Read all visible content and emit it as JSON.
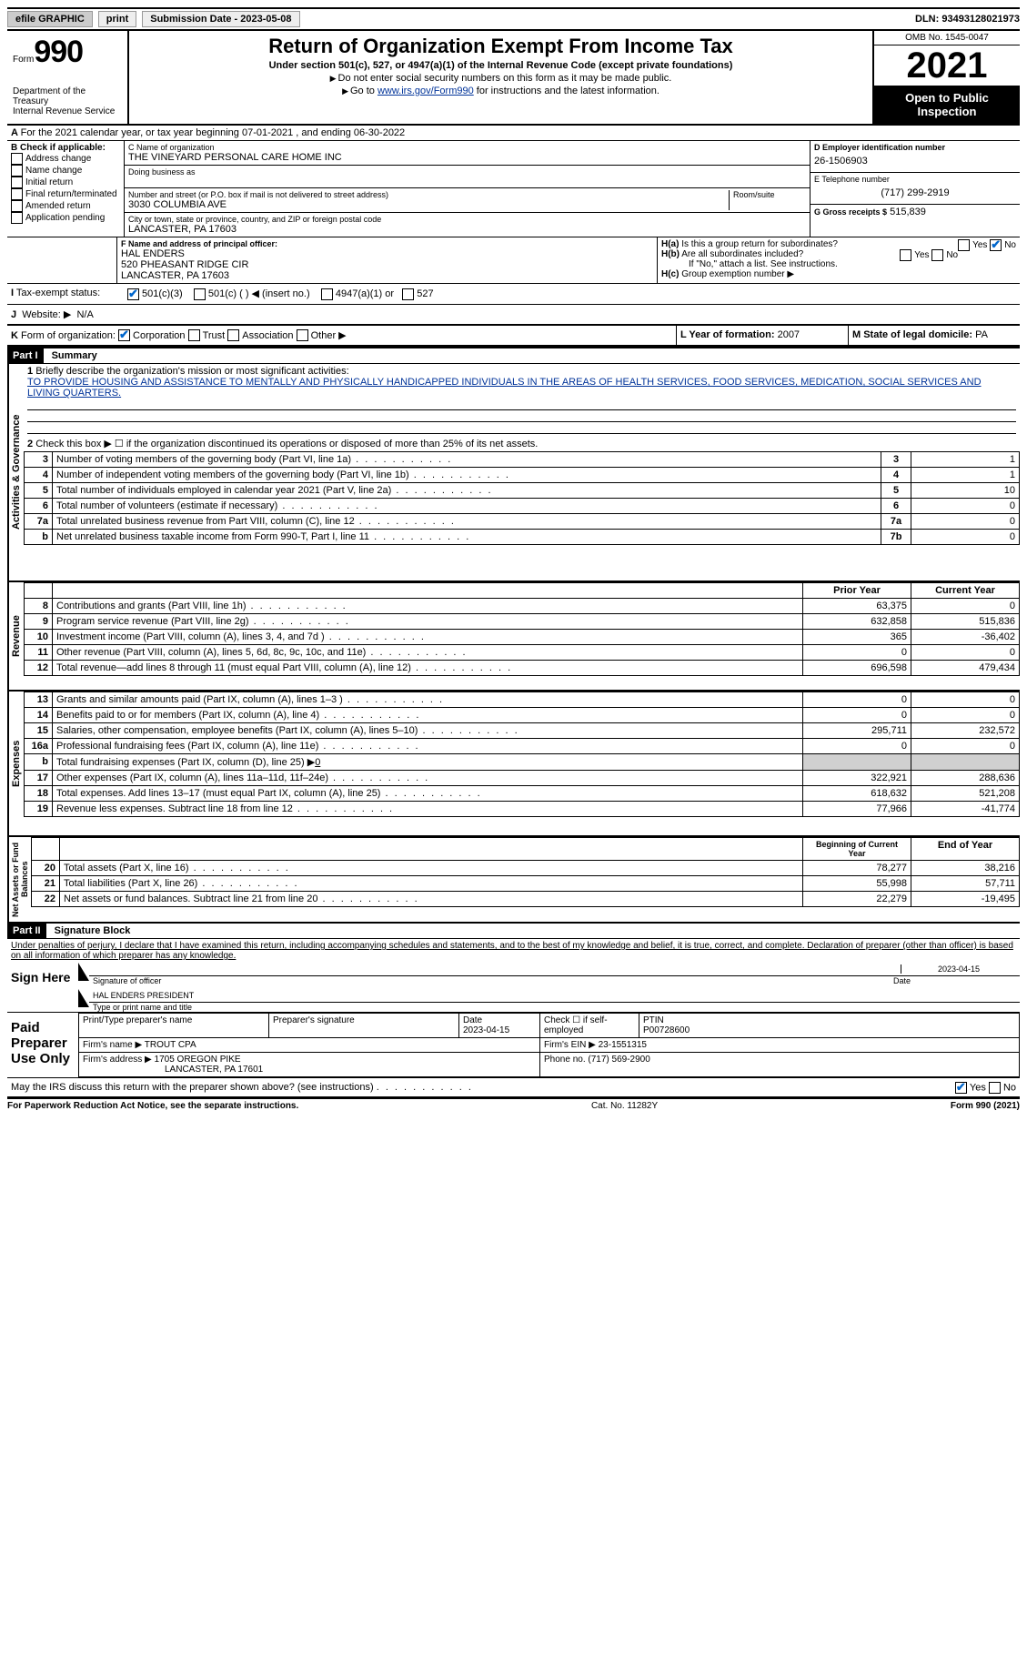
{
  "topbar": {
    "efile": "efile GRAPHIC",
    "print": "print",
    "subdate_label": "Submission Date - 2023-05-08",
    "dln": "DLN: 93493128021973"
  },
  "header": {
    "form_label": "Form",
    "form_no": "990",
    "dept": "Department of the Treasury",
    "irs": "Internal Revenue Service",
    "title": "Return of Organization Exempt From Income Tax",
    "sub": "Under section 501(c), 527, or 4947(a)(1) of the Internal Revenue Code (except private foundations)",
    "note1": "Do not enter social security numbers on this form as it may be made public.",
    "note2_pre": "Go to ",
    "note2_link": "www.irs.gov/Form990",
    "note2_post": " for instructions and the latest information.",
    "omb": "OMB No. 1545-0047",
    "year": "2021",
    "open": "Open to Public Inspection"
  },
  "line_a": "For the 2021 calendar year, or tax year beginning 07-01-2021   , and ending 06-30-2022",
  "section_b": {
    "label": "B Check if applicable:",
    "items": [
      "Address change",
      "Name change",
      "Initial return",
      "Final return/terminated",
      "Amended return",
      "Application pending"
    ]
  },
  "section_c": {
    "name_label": "C Name of organization",
    "name": "THE VINEYARD PERSONAL CARE HOME INC",
    "dba_label": "Doing business as",
    "addr_label": "Number and street (or P.O. box if mail is not delivered to street address)",
    "room_label": "Room/suite",
    "addr": "3030 COLUMBIA AVE",
    "city_label": "City or town, state or province, country, and ZIP or foreign postal code",
    "city": "LANCASTER, PA  17603"
  },
  "section_d": {
    "label": "D Employer identification number",
    "val": "26-1506903"
  },
  "section_e": {
    "label": "E Telephone number",
    "val": "(717) 299-2919"
  },
  "section_g": {
    "label": "G Gross receipts $",
    "val": "515,839"
  },
  "section_f": {
    "label": "F Name and address of principal officer:",
    "name": "HAL ENDERS",
    "addr1": "520 PHEASANT RIDGE CIR",
    "addr2": "LANCASTER, PA  17603"
  },
  "section_h": {
    "ha": "Is this a group return for subordinates?",
    "hb": "Are all subordinates included?",
    "hb_note": "If \"No,\" attach a list. See instructions.",
    "hc": "Group exemption number"
  },
  "section_i": {
    "label": "Tax-exempt status:",
    "opts": [
      "501(c)(3)",
      "501(c) (  ) ◀ (insert no.)",
      "4947(a)(1) or",
      "527"
    ]
  },
  "section_j": {
    "label": "Website:",
    "val": "N/A"
  },
  "section_k": {
    "label": "Form of organization:",
    "opts": [
      "Corporation",
      "Trust",
      "Association",
      "Other"
    ]
  },
  "section_l": {
    "label": "L Year of formation:",
    "val": "2007"
  },
  "section_m": {
    "label": "M State of legal domicile:",
    "val": "PA"
  },
  "part1": {
    "hdr": "Part I",
    "title": "Summary",
    "line1_label": "Briefly describe the organization's mission or most significant activities:",
    "mission": "TO PROVIDE HOUSING AND ASSISTANCE TO MENTALLY AND PHYSICALLY HANDICAPPED INDIVIDUALS IN THE AREAS OF HEALTH SERVICES, FOOD SERVICES, MEDICATION, SOCIAL SERVICES AND LIVING QUARTERS.",
    "line2": "Check this box ▶ ☐ if the organization discontinued its operations or disposed of more than 25% of its net assets.",
    "vtabs": [
      "Activities & Governance",
      "Revenue",
      "Expenses",
      "Net Assets or Fund Balances"
    ],
    "gov_rows": [
      {
        "n": "3",
        "t": "Number of voting members of the governing body (Part VI, line 1a)",
        "box": "3",
        "v": "1"
      },
      {
        "n": "4",
        "t": "Number of independent voting members of the governing body (Part VI, line 1b)",
        "box": "4",
        "v": "1"
      },
      {
        "n": "5",
        "t": "Total number of individuals employed in calendar year 2021 (Part V, line 2a)",
        "box": "5",
        "v": "10"
      },
      {
        "n": "6",
        "t": "Total number of volunteers (estimate if necessary)",
        "box": "6",
        "v": "0"
      },
      {
        "n": "7a",
        "t": "Total unrelated business revenue from Part VIII, column (C), line 12",
        "box": "7a",
        "v": "0"
      },
      {
        "n": "b",
        "t": "Net unrelated business taxable income from Form 990-T, Part I, line 11",
        "box": "7b",
        "v": "0"
      }
    ],
    "col_hdr": {
      "py": "Prior Year",
      "cy": "Current Year"
    },
    "rev_rows": [
      {
        "n": "8",
        "t": "Contributions and grants (Part VIII, line 1h)",
        "py": "63,375",
        "cy": "0"
      },
      {
        "n": "9",
        "t": "Program service revenue (Part VIII, line 2g)",
        "py": "632,858",
        "cy": "515,836"
      },
      {
        "n": "10",
        "t": "Investment income (Part VIII, column (A), lines 3, 4, and 7d )",
        "py": "365",
        "cy": "-36,402"
      },
      {
        "n": "11",
        "t": "Other revenue (Part VIII, column (A), lines 5, 6d, 8c, 9c, 10c, and 11e)",
        "py": "0",
        "cy": "0"
      },
      {
        "n": "12",
        "t": "Total revenue—add lines 8 through 11 (must equal Part VIII, column (A), line 12)",
        "py": "696,598",
        "cy": "479,434"
      }
    ],
    "exp_rows": [
      {
        "n": "13",
        "t": "Grants and similar amounts paid (Part IX, column (A), lines 1–3 )",
        "py": "0",
        "cy": "0"
      },
      {
        "n": "14",
        "t": "Benefits paid to or for members (Part IX, column (A), line 4)",
        "py": "0",
        "cy": "0"
      },
      {
        "n": "15",
        "t": "Salaries, other compensation, employee benefits (Part IX, column (A), lines 5–10)",
        "py": "295,711",
        "cy": "232,572"
      },
      {
        "n": "16a",
        "t": "Professional fundraising fees (Part IX, column (A), line 11e)",
        "py": "0",
        "cy": "0"
      }
    ],
    "exp_b": {
      "n": "b",
      "t": "Total fundraising expenses (Part IX, column (D), line 25) ▶",
      "v": "0"
    },
    "exp_rows2": [
      {
        "n": "17",
        "t": "Other expenses (Part IX, column (A), lines 11a–11d, 11f–24e)",
        "py": "322,921",
        "cy": "288,636"
      },
      {
        "n": "18",
        "t": "Total expenses. Add lines 13–17 (must equal Part IX, column (A), line 25)",
        "py": "618,632",
        "cy": "521,208"
      },
      {
        "n": "19",
        "t": "Revenue less expenses. Subtract line 18 from line 12",
        "py": "77,966",
        "cy": "-41,774"
      }
    ],
    "na_hdr": {
      "py": "Beginning of Current Year",
      "cy": "End of Year"
    },
    "na_rows": [
      {
        "n": "20",
        "t": "Total assets (Part X, line 16)",
        "py": "78,277",
        "cy": "38,216"
      },
      {
        "n": "21",
        "t": "Total liabilities (Part X, line 26)",
        "py": "55,998",
        "cy": "57,711"
      },
      {
        "n": "22",
        "t": "Net assets or fund balances. Subtract line 21 from line 20",
        "py": "22,279",
        "cy": "-19,495"
      }
    ]
  },
  "part2": {
    "hdr": "Part II",
    "title": "Signature Block",
    "decl": "Under penalties of perjury, I declare that I have examined this return, including accompanying schedules and statements, and to the best of my knowledge and belief, it is true, correct, and complete. Declaration of preparer (other than officer) is based on all information of which preparer has any knowledge.",
    "sign_here": "Sign Here",
    "sig_officer": "Signature of officer",
    "sig_date": "2023-04-15",
    "officer_name": "HAL ENDERS PRESIDENT",
    "type_name": "Type or print name and title",
    "paid": "Paid Preparer Use Only",
    "prep_name_label": "Print/Type preparer's name",
    "prep_sig_label": "Preparer's signature",
    "prep_date_label": "Date",
    "prep_date": "2023-04-15",
    "check_if": "Check ☐ if self-employed",
    "ptin_label": "PTIN",
    "ptin": "P00728600",
    "firm_name_label": "Firm's name   ▶",
    "firm_name": "TROUT CPA",
    "firm_ein_label": "Firm's EIN ▶",
    "firm_ein": "23-1551315",
    "firm_addr_label": "Firm's address ▶",
    "firm_addr1": "1705 OREGON PIKE",
    "firm_addr2": "LANCASTER, PA  17601",
    "phone_label": "Phone no.",
    "phone": "(717) 569-2900",
    "discuss": "May the IRS discuss this return with the preparer shown above? (see instructions)"
  },
  "footer": {
    "left": "For Paperwork Reduction Act Notice, see the separate instructions.",
    "mid": "Cat. No. 11282Y",
    "right": "Form 990 (2021)"
  }
}
